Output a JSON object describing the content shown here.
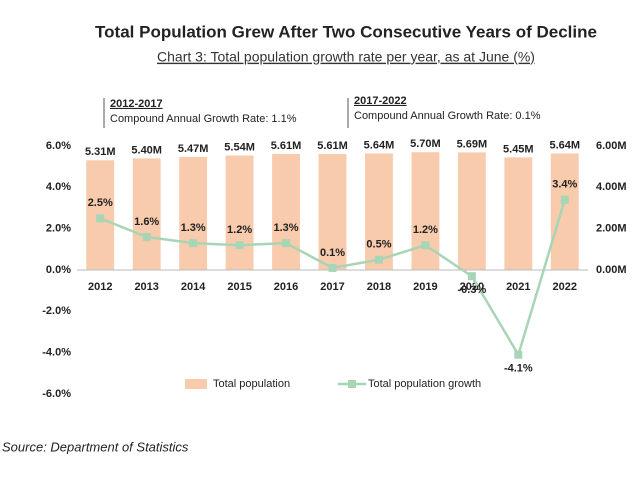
{
  "chart_data": {
    "type": "combo",
    "title": "Total Population Grew After Two Consecutive Years of Decline",
    "subtitle": "Chart 3: Total population growth rate per year, as at June (%)",
    "categories": [
      "2012",
      "2013",
      "2014",
      "2015",
      "2016",
      "2017",
      "2018",
      "2019",
      "2020",
      "2021",
      "2022"
    ],
    "series": [
      {
        "name": "Total population",
        "type": "bar",
        "axis": "y2",
        "color": "#f8cbad",
        "values": [
          5.31,
          5.4,
          5.47,
          5.54,
          5.61,
          5.61,
          5.64,
          5.7,
          5.69,
          5.45,
          5.64
        ],
        "value_labels": [
          "5.31M",
          "5.40M",
          "5.47M",
          "5.54M",
          "5.61M",
          "5.61M",
          "5.64M",
          "5.70M",
          "5.69M",
          "5.45M",
          "5.64M"
        ]
      },
      {
        "name": "Total population growth",
        "type": "line",
        "color": "#a8d5b5",
        "values": [
          2.5,
          1.6,
          1.3,
          1.2,
          1.3,
          0.1,
          0.5,
          1.2,
          -0.3,
          -4.1,
          3.4
        ],
        "value_labels": [
          "2.5%",
          "1.6%",
          "1.3%",
          "1.2%",
          "1.3%",
          "0.1%",
          "0.5%",
          "1.2%",
          "-0.3%",
          "-4.1%",
          "3.4%"
        ]
      }
    ],
    "ylim": [
      -6,
      6
    ],
    "yticks": [
      {
        "value": -6,
        "label": "-6.0%"
      },
      {
        "value": -4,
        "label": "-4.0%"
      },
      {
        "value": -2,
        "label": "-2.0%"
      },
      {
        "value": 0,
        "label": "0.0%"
      },
      {
        "value": 2,
        "label": "2.0%"
      },
      {
        "value": 4,
        "label": "4.0%"
      },
      {
        "value": 6,
        "label": "6.0%"
      }
    ],
    "y2lim": [
      -6,
      6
    ],
    "y2ticks": [
      {
        "value": 0,
        "label": "0.00M"
      },
      {
        "value": 2,
        "label": "2.00M"
      },
      {
        "value": 4,
        "label": "4.00M"
      },
      {
        "value": 6,
        "label": "6.00M"
      }
    ],
    "grid": false,
    "legend": "bottom",
    "annotations": [
      "2012-2017",
      "Compound Annual Growth Rate: 1.1%",
      "2017-2022",
      "Compound Annual Growth Rate: 0.1%"
    ],
    "source": "Source: Department of Statistics"
  }
}
